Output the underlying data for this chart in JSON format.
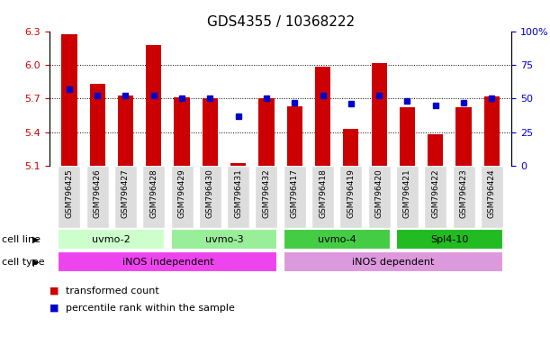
{
  "title": "GDS4355 / 10368222",
  "samples": [
    "GSM796425",
    "GSM796426",
    "GSM796427",
    "GSM796428",
    "GSM796429",
    "GSM796430",
    "GSM796431",
    "GSM796432",
    "GSM796417",
    "GSM796418",
    "GSM796419",
    "GSM796420",
    "GSM796421",
    "GSM796422",
    "GSM796423",
    "GSM796424"
  ],
  "transformed_count": [
    6.27,
    5.83,
    5.73,
    6.18,
    5.71,
    5.7,
    5.13,
    5.7,
    5.63,
    5.98,
    5.43,
    6.02,
    5.62,
    5.38,
    5.62,
    5.72
  ],
  "percentile_rank": [
    57,
    52,
    52,
    52,
    50,
    50,
    37,
    50,
    47,
    52,
    46,
    52,
    48,
    45,
    47,
    50
  ],
  "ylim_left": [
    5.1,
    6.3
  ],
  "ylim_right": [
    0,
    100
  ],
  "yticks_left": [
    5.1,
    5.4,
    5.7,
    6.0,
    6.3
  ],
  "yticks_right": [
    0,
    25,
    50,
    75,
    100
  ],
  "bar_color": "#cc0000",
  "dot_color": "#0000cc",
  "bar_bottom": 5.1,
  "cell_line_groups": [
    {
      "label": "uvmo-2",
      "start": 0,
      "end": 3,
      "color": "#ccffcc"
    },
    {
      "label": "uvmo-3",
      "start": 4,
      "end": 7,
      "color": "#99ee99"
    },
    {
      "label": "uvmo-4",
      "start": 8,
      "end": 11,
      "color": "#44cc44"
    },
    {
      "label": "Spl4-10",
      "start": 12,
      "end": 15,
      "color": "#22bb22"
    }
  ],
  "cell_type_groups": [
    {
      "label": "iNOS independent",
      "start": 0,
      "end": 7,
      "color": "#ee44ee"
    },
    {
      "label": "iNOS dependent",
      "start": 8,
      "end": 15,
      "color": "#dd99dd"
    }
  ],
  "legend_items": [
    {
      "label": "transformed count",
      "color": "#cc0000"
    },
    {
      "label": "percentile rank within the sample",
      "color": "#0000cc"
    }
  ],
  "bg_color": "#ffffff",
  "tick_label_color_left": "#cc0000",
  "tick_label_color_right": "#0000cc",
  "cell_line_label": "cell line",
  "cell_type_label": "cell type",
  "xtick_bg_color": "#dddddd",
  "title_fontsize": 11
}
